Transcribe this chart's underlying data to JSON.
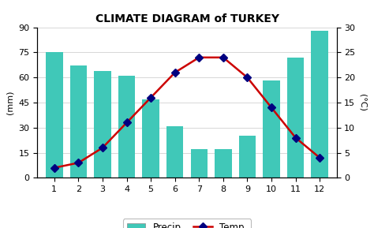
{
  "title": "CLIMATE DIAGRAM of TURKEY",
  "months": [
    1,
    2,
    3,
    4,
    5,
    6,
    7,
    8,
    9,
    10,
    11,
    12
  ],
  "precip": [
    75,
    67,
    64,
    61,
    47,
    31,
    17,
    17,
    25,
    58,
    72,
    88
  ],
  "temp": [
    2,
    3,
    6,
    11,
    16,
    21,
    24,
    24,
    20,
    14,
    8,
    4
  ],
  "bar_color": "#40C8B8",
  "line_color": "#CC0000",
  "marker_color": "#000080",
  "ylabel_left": "(mm)",
  "ylabel_right": "(°C)",
  "ylim_left": [
    0,
    90
  ],
  "ylim_right": [
    0,
    30
  ],
  "yticks_left": [
    0,
    15,
    30,
    45,
    60,
    75,
    90
  ],
  "yticks_right": [
    0,
    5,
    10,
    15,
    20,
    25,
    30
  ],
  "background_color": "#ffffff",
  "legend_precip": "Precip.",
  "legend_temp": "Temp.",
  "figsize": [
    4.74,
    2.89
  ],
  "dpi": 100
}
